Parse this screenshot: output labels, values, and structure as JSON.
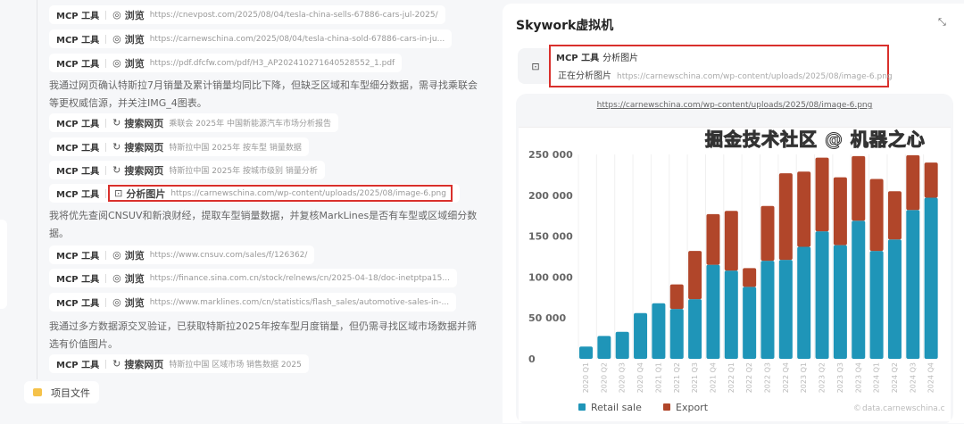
{
  "left": {
    "tool_label": "MCP 工具",
    "rows": [
      {
        "icon": "browse-icon",
        "action": "浏览",
        "detail": "https://cnevpost.com/2025/08/04/tesla-china-sells-67886-cars-jul-2025/"
      },
      {
        "icon": "browse-icon",
        "action": "浏览",
        "detail": "https://carnewschina.com/2025/08/04/tesla-china-sold-67886-cars-in-ju..."
      },
      {
        "icon": "browse-icon",
        "action": "浏览",
        "detail": "https://pdf.dfcfw.com/pdf/H3_AP202410271640528552_1.pdf"
      },
      {
        "icon": "search-icon",
        "action": "搜索网页",
        "detail": "乘联会 2025年 中国新能源汽车市场分析报告"
      },
      {
        "icon": "search-icon",
        "action": "搜索网页",
        "detail": "特斯拉中国 2025年 按车型 销量数据"
      },
      {
        "icon": "search-icon",
        "action": "搜索网页",
        "detail": "特斯拉中国 2025年 按城市级别 销量分析"
      },
      {
        "icon": "image-analyze-icon",
        "action": "分析图片",
        "detail": "https://carnewschina.com/wp-content/uploads/2025/08/image-6.png"
      },
      {
        "icon": "browse-icon",
        "action": "浏览",
        "detail": "https://www.cnsuv.com/sales/f/126362/"
      },
      {
        "icon": "browse-icon",
        "action": "浏览",
        "detail": "https://finance.sina.com.cn/stock/relnews/cn/2025-04-18/doc-inetptpa15..."
      },
      {
        "icon": "browse-icon",
        "action": "浏览",
        "detail": "https://www.marklines.com/cn/statistics/flash_sales/automotive-sales-in-..."
      },
      {
        "icon": "search-icon",
        "action": "搜索网页",
        "detail": "特斯拉中国 区域市场 销售数据 2025"
      }
    ],
    "paragraphs": [
      "我通过网页确认特斯拉7月销量及累计销量均同比下降，但缺乏区域和车型细分数据，需寻找乘联会等更权威信源，并关注IMG_4图表。",
      "我将优先查阅CNSUV和新浪财经，提取车型销量数据，并复核MarkLines是否有车型或区域细分数据。",
      "我通过多方数据源交叉验证，已获取特斯拉2025年按车型月度销量，但仍需寻找区域市场数据并筛选有价值图片。"
    ],
    "project_files": "项目文件"
  },
  "right": {
    "title": "Skywork虚拟机",
    "tool_label": "MCP 工具",
    "tool_action": "分析图片",
    "status": "正在分析图片",
    "status_url": "https://carnewschina.com/wp-content/uploads/2025/08/image-6.png",
    "image_url": "https://carnewschina.com/wp-content/uploads/2025/08/image-6.png"
  },
  "watermark": "掘金技术社区 @ 机器之心",
  "chart_data": {
    "type": "bar",
    "stacked": true,
    "categories": [
      "2020 Q1",
      "2020 Q2",
      "2020 Q3",
      "2020 Q4",
      "2021 Q1",
      "2021 Q2",
      "2021 Q3",
      "2021 Q4",
      "2022 Q1",
      "2022 Q2",
      "2022 Q3",
      "2022 Q4",
      "2023 Q1",
      "2023 Q2",
      "2023 Q3",
      "2023 Q4",
      "2024 Q1",
      "2024 Q2",
      "2024 Q3",
      "2024 Q4"
    ],
    "series": [
      {
        "name": "Retail sale",
        "color": "#1f95b8",
        "values": [
          15000,
          28000,
          33000,
          56000,
          68000,
          61000,
          73000,
          115000,
          108000,
          88000,
          120000,
          121000,
          137000,
          156000,
          139000,
          169000,
          132000,
          146000,
          182000,
          197000
        ]
      },
      {
        "name": "Export",
        "color": "#b1462a",
        "values": [
          0,
          0,
          0,
          0,
          0,
          30000,
          59000,
          62000,
          73000,
          23000,
          67000,
          106000,
          92000,
          90000,
          83000,
          79000,
          88000,
          59000,
          67000,
          43000
        ]
      }
    ],
    "yticks": [
      "0",
      "50 000",
      "100 000",
      "150 000",
      "200 000",
      "250 000"
    ],
    "ylim": [
      0,
      250000
    ],
    "grid": "vertical",
    "legend": "bottom-left",
    "source": "data.carnewschina.c"
  }
}
